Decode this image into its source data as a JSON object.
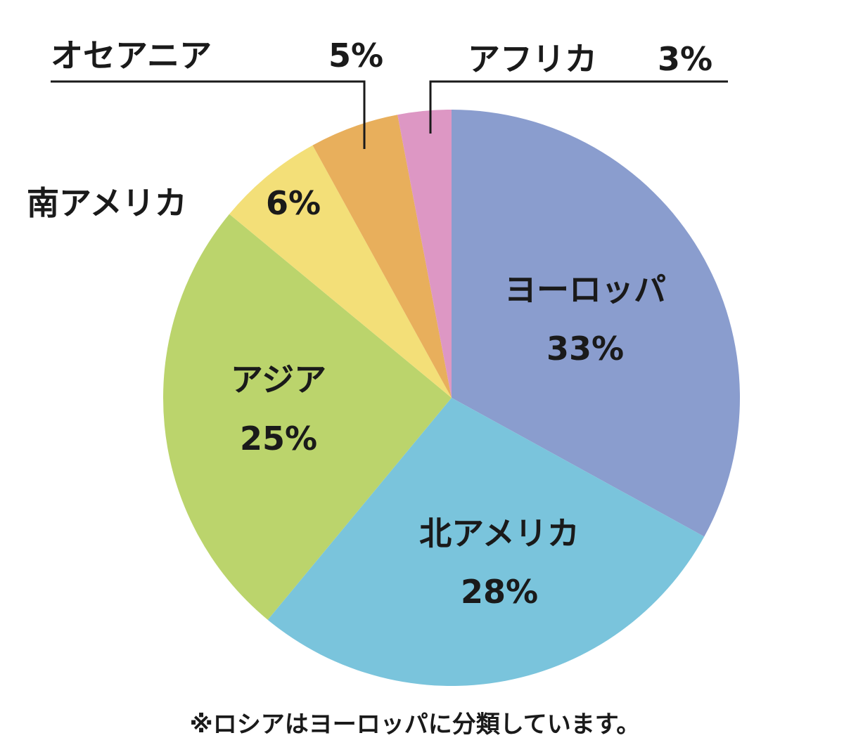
{
  "chart_data": {
    "type": "pie",
    "title": "",
    "slices": [
      {
        "label": "ヨーロッパ",
        "value": 33,
        "pct": "33%",
        "color": "#8a9dce"
      },
      {
        "label": "北アメリカ",
        "value": 28,
        "pct": "28%",
        "color": "#7ac4dc"
      },
      {
        "label": "アジア",
        "value": 25,
        "pct": "25%",
        "color": "#bbd46c"
      },
      {
        "label": "南アメリカ",
        "value": 6,
        "pct": "6%",
        "color": "#f3df78"
      },
      {
        "label": "オセアニア",
        "value": 5,
        "pct": "5%",
        "color": "#e8af5c"
      },
      {
        "label": "アフリカ",
        "value": 3,
        "pct": "3%",
        "color": "#dd97c4"
      }
    ],
    "footnote": "※ロシアはヨーロッパに分類しています。"
  }
}
